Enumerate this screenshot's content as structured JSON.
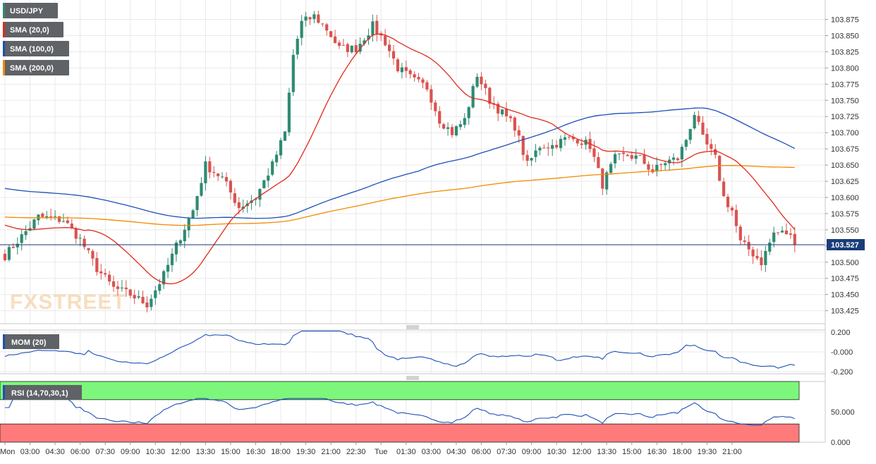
{
  "chart_data": [
    {
      "type": "candlestick",
      "symbol": "USD/JPY",
      "ylim": [
        103.405,
        103.905
      ],
      "y_ticks": [
        "103.875",
        "103.850",
        "103.825",
        "103.800",
        "103.775",
        "103.750",
        "103.725",
        "103.700",
        "103.675",
        "103.650",
        "103.625",
        "103.600",
        "103.575",
        "103.550",
        "103.525",
        "103.500",
        "103.475",
        "103.450",
        "103.425"
      ],
      "last_price": "103.527",
      "candle_interval_minutes": 15,
      "x_tick_labels": [
        "Mon",
        "03:00",
        "04:30",
        "06:00",
        "07:30",
        "09:00",
        "10:30",
        "12:00",
        "13:30",
        "15:00",
        "16:30",
        "18:00",
        "19:30",
        "21:00",
        "22:30",
        "Tue",
        "01:30",
        "03:00",
        "04:30",
        "06:00",
        "07:30",
        "09:00",
        "10:30",
        "12:00",
        "13:30",
        "15:00",
        "16:30",
        "18:00",
        "19:30",
        "21:00"
      ],
      "price_anchors": [
        [
          0,
          103.51
        ],
        [
          8,
          103.57
        ],
        [
          14,
          103.565
        ],
        [
          18,
          103.535
        ],
        [
          22,
          103.49
        ],
        [
          26,
          103.46
        ],
        [
          30,
          103.45
        ],
        [
          34,
          103.435
        ],
        [
          38,
          103.48
        ],
        [
          42,
          103.54
        ],
        [
          45,
          103.58
        ],
        [
          48,
          103.65
        ],
        [
          52,
          103.63
        ],
        [
          56,
          103.585
        ],
        [
          60,
          103.6
        ],
        [
          64,
          103.65
        ],
        [
          67,
          103.7
        ],
        [
          69,
          103.82
        ],
        [
          71,
          103.87
        ],
        [
          74,
          103.88
        ],
        [
          77,
          103.86
        ],
        [
          80,
          103.83
        ],
        [
          84,
          103.83
        ],
        [
          88,
          103.865
        ],
        [
          91,
          103.84
        ],
        [
          94,
          103.8
        ],
        [
          98,
          103.78
        ],
        [
          101,
          103.77
        ],
        [
          104,
          103.72
        ],
        [
          107,
          103.7
        ],
        [
          110,
          103.72
        ],
        [
          113,
          103.79
        ],
        [
          116,
          103.75
        ],
        [
          119,
          103.73
        ],
        [
          122,
          103.71
        ],
        [
          125,
          103.65
        ],
        [
          128,
          103.68
        ],
        [
          131,
          103.68
        ],
        [
          134,
          103.69
        ],
        [
          137,
          103.69
        ],
        [
          140,
          103.68
        ],
        [
          143,
          103.62
        ],
        [
          146,
          103.66
        ],
        [
          149,
          103.665
        ],
        [
          152,
          103.66
        ],
        [
          155,
          103.64
        ],
        [
          158,
          103.655
        ],
        [
          161,
          103.66
        ],
        [
          163,
          103.69
        ],
        [
          165,
          103.73
        ],
        [
          167,
          103.69
        ],
        [
          170,
          103.66
        ],
        [
          172,
          103.6
        ],
        [
          174,
          103.58
        ],
        [
          176,
          103.53
        ],
        [
          178,
          103.52
        ],
        [
          181,
          103.5
        ],
        [
          184,
          103.545
        ],
        [
          187,
          103.545
        ],
        [
          190,
          103.527
        ]
      ],
      "sma_series": [
        {
          "name": "SMA (20,0)",
          "color": "#e02a1c"
        },
        {
          "name": "SMA (100,0)",
          "color": "#1d4fb8"
        },
        {
          "name": "SMA (200,0)",
          "color": "#f28a00"
        }
      ],
      "sma100_seed_level": 103.615,
      "sma200_seed_level": 103.57
    },
    {
      "type": "line",
      "title": "MOM (20)",
      "ylim": [
        -0.22,
        0.22
      ],
      "y_ticks": [
        "0.200",
        "-0.000",
        "-0.200"
      ],
      "color": "#1d4fb8"
    },
    {
      "type": "line",
      "title": "RSI (14,70,30,1)",
      "ylim": [
        0,
        100
      ],
      "overbought": 70,
      "oversold": 30,
      "y_ticks": [
        "50.000",
        "0.000"
      ],
      "color": "#1d4fb8",
      "overbought_color": "#7cf77c",
      "oversold_color": "#ff7b7b"
    }
  ],
  "watermark": "FXSTREET",
  "colors": {
    "up": "#2e8b72",
    "down": "#d9534f",
    "label_bg": "#5f6266",
    "price_tag_bg": "#1a3d7a",
    "grid": "#e9e9e9",
    "axis_text": "#333333"
  }
}
